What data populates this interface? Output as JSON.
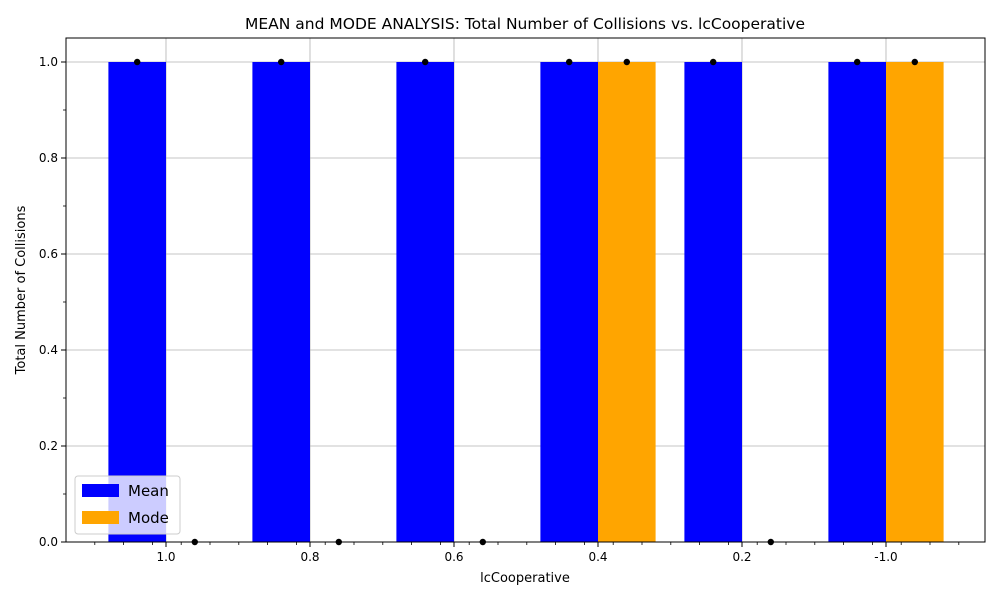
{
  "chart_data": {
    "type": "bar",
    "title": "MEAN and MODE ANALYSIS: Total Number of Collisions vs. lcCooperative",
    "xlabel": "lcCooperative",
    "ylabel": "Total Number of Collisions",
    "categories": [
      "1.0",
      "0.8",
      "0.6",
      "0.4",
      "0.2",
      "-1.0"
    ],
    "series": [
      {
        "name": "Mean",
        "color": "#0000ff",
        "values": [
          1.0,
          1.0,
          1.0,
          1.0,
          1.0,
          1.0
        ]
      },
      {
        "name": "Mode",
        "color": "#ffa500",
        "values": [
          0.0,
          0.0,
          0.0,
          1.0,
          0.0,
          1.0
        ]
      }
    ],
    "ylim": [
      0,
      1.05
    ],
    "yticks": [
      "0.0",
      "0.2",
      "0.4",
      "0.6",
      "0.8",
      "1.0"
    ],
    "grid": true,
    "legend_position": "lower-left",
    "point_markers": true
  }
}
